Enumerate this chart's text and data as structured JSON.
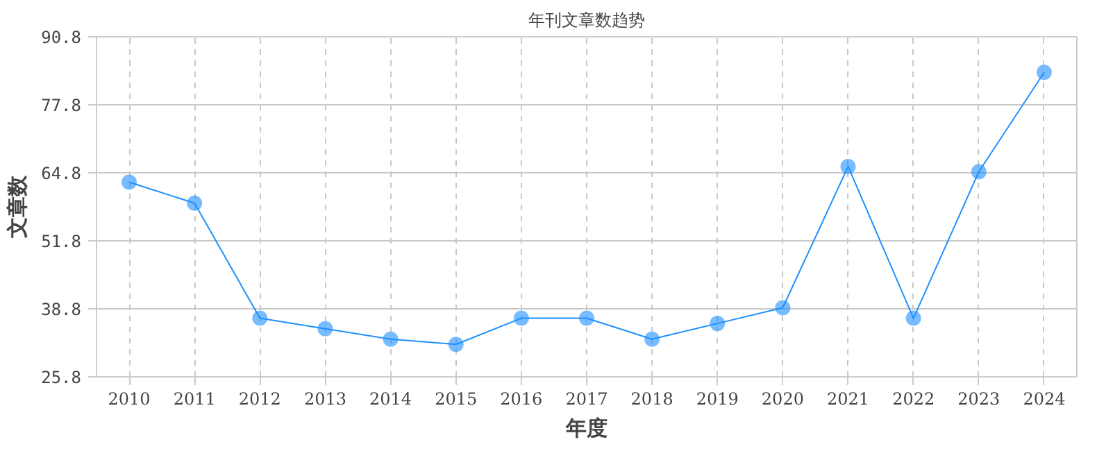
{
  "chart_data": {
    "type": "line",
    "title": "年刊文章数趋势",
    "xlabel": "年度",
    "ylabel": "文章数",
    "categories": [
      "2010",
      "2011",
      "2012",
      "2013",
      "2014",
      "2015",
      "2016",
      "2017",
      "2018",
      "2019",
      "2020",
      "2021",
      "2022",
      "2023",
      "2024"
    ],
    "series": [
      {
        "color": "#1e90ff",
        "values": [
          63,
          59,
          37,
          35,
          33,
          32,
          37,
          37,
          33,
          36,
          39,
          66,
          37,
          65,
          84
        ]
      }
    ],
    "ylim": [
      25.8,
      90.8
    ],
    "yticks": [
      25.8,
      38.8,
      51.8,
      64.8,
      77.8,
      90.8
    ],
    "grid": true,
    "marker": "circle",
    "line_style": "solid"
  }
}
